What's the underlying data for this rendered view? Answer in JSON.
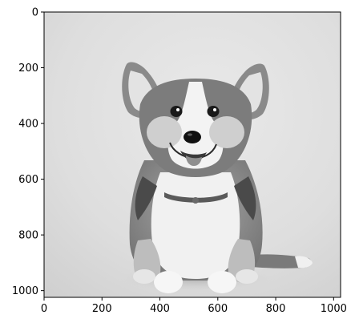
{
  "figure": {
    "subject": "corgi-puppy-grayscale",
    "colormap": "gray"
  },
  "chart_data": {
    "type": "image",
    "title": "",
    "xlabel": "",
    "ylabel": "",
    "xlim": [
      0,
      1024
    ],
    "ylim": [
      1024,
      0
    ],
    "x_ticks": [
      "0",
      "200",
      "400",
      "600",
      "800",
      "1000"
    ],
    "y_ticks": [
      "0",
      "200",
      "400",
      "600",
      "800",
      "1000"
    ],
    "grid": false
  }
}
